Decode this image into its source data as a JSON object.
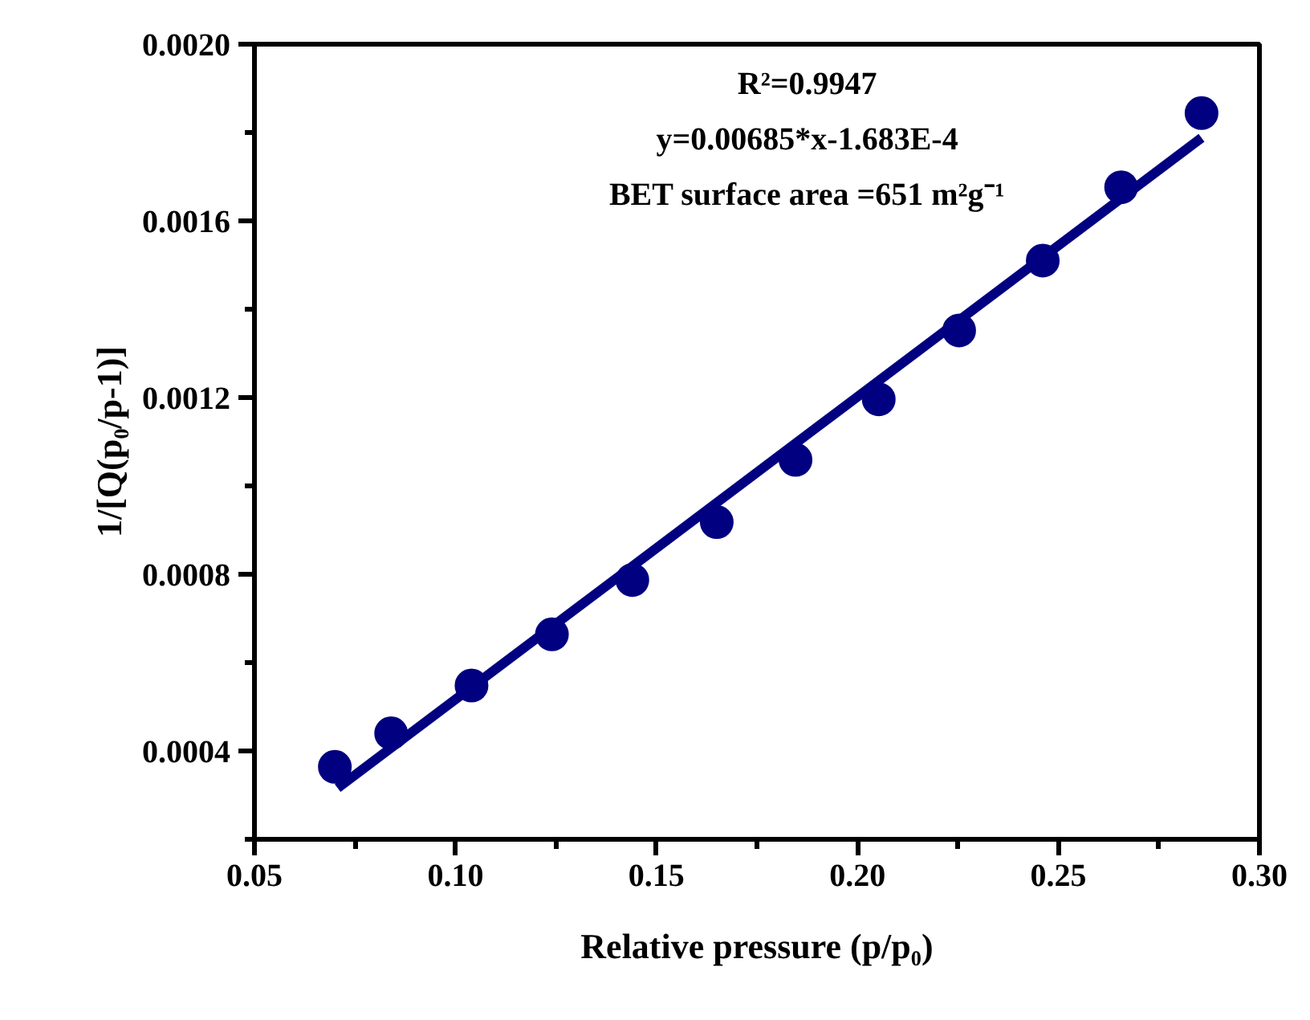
{
  "chart_data": {
    "type": "scatter",
    "xlabel": "Relative pressure (p/p₀)",
    "ylabel": "1/[Q(p₀/p-1)]",
    "annotations": [
      "R²=0.9947",
      "y=0.00685*x-1.683E-4",
      "BET surface area =651 m²g⁻¹"
    ],
    "x": [
      0.07,
      0.084,
      0.104,
      0.124,
      0.144,
      0.165,
      0.1846,
      0.2053,
      0.2253,
      0.2461,
      0.2656,
      0.2856
    ],
    "series": [
      {
        "color": "#000080",
        "marker": "circle",
        "values": [
          0.000364,
          0.00044,
          0.000548,
          0.000664,
          0.000787,
          0.000918,
          0.001059,
          0.001196,
          0.001352,
          0.00151,
          0.001676,
          0.001844
        ]
      },
      {
        "type": "line",
        "color": "#000080",
        "marker": "none",
        "line_style": "solid",
        "x": [
          0.0707,
          0.2856
        ],
        "values": [
          0.000316,
          0.001788
        ]
      }
    ],
    "xlim": [
      0.05,
      0.3
    ],
    "ylim": [
      0.0002,
      0.002
    ],
    "xticks": [
      {
        "value": 0.05,
        "label": "0.05"
      },
      {
        "value": 0.1,
        "label": "0.10"
      },
      {
        "value": 0.15,
        "label": "0.15"
      },
      {
        "value": 0.2,
        "label": "0.20"
      },
      {
        "value": 0.25,
        "label": "0.25"
      },
      {
        "value": 0.3,
        "label": "0.30"
      }
    ],
    "yticks": [
      {
        "value": 0.0004,
        "label": "0.0004"
      },
      {
        "value": 0.0008,
        "label": "0.0008"
      },
      {
        "value": 0.0012,
        "label": "0.0012"
      },
      {
        "value": 0.0016,
        "label": "0.0016"
      },
      {
        "value": 0.002,
        "label": "0.0020"
      }
    ],
    "grid": false
  }
}
